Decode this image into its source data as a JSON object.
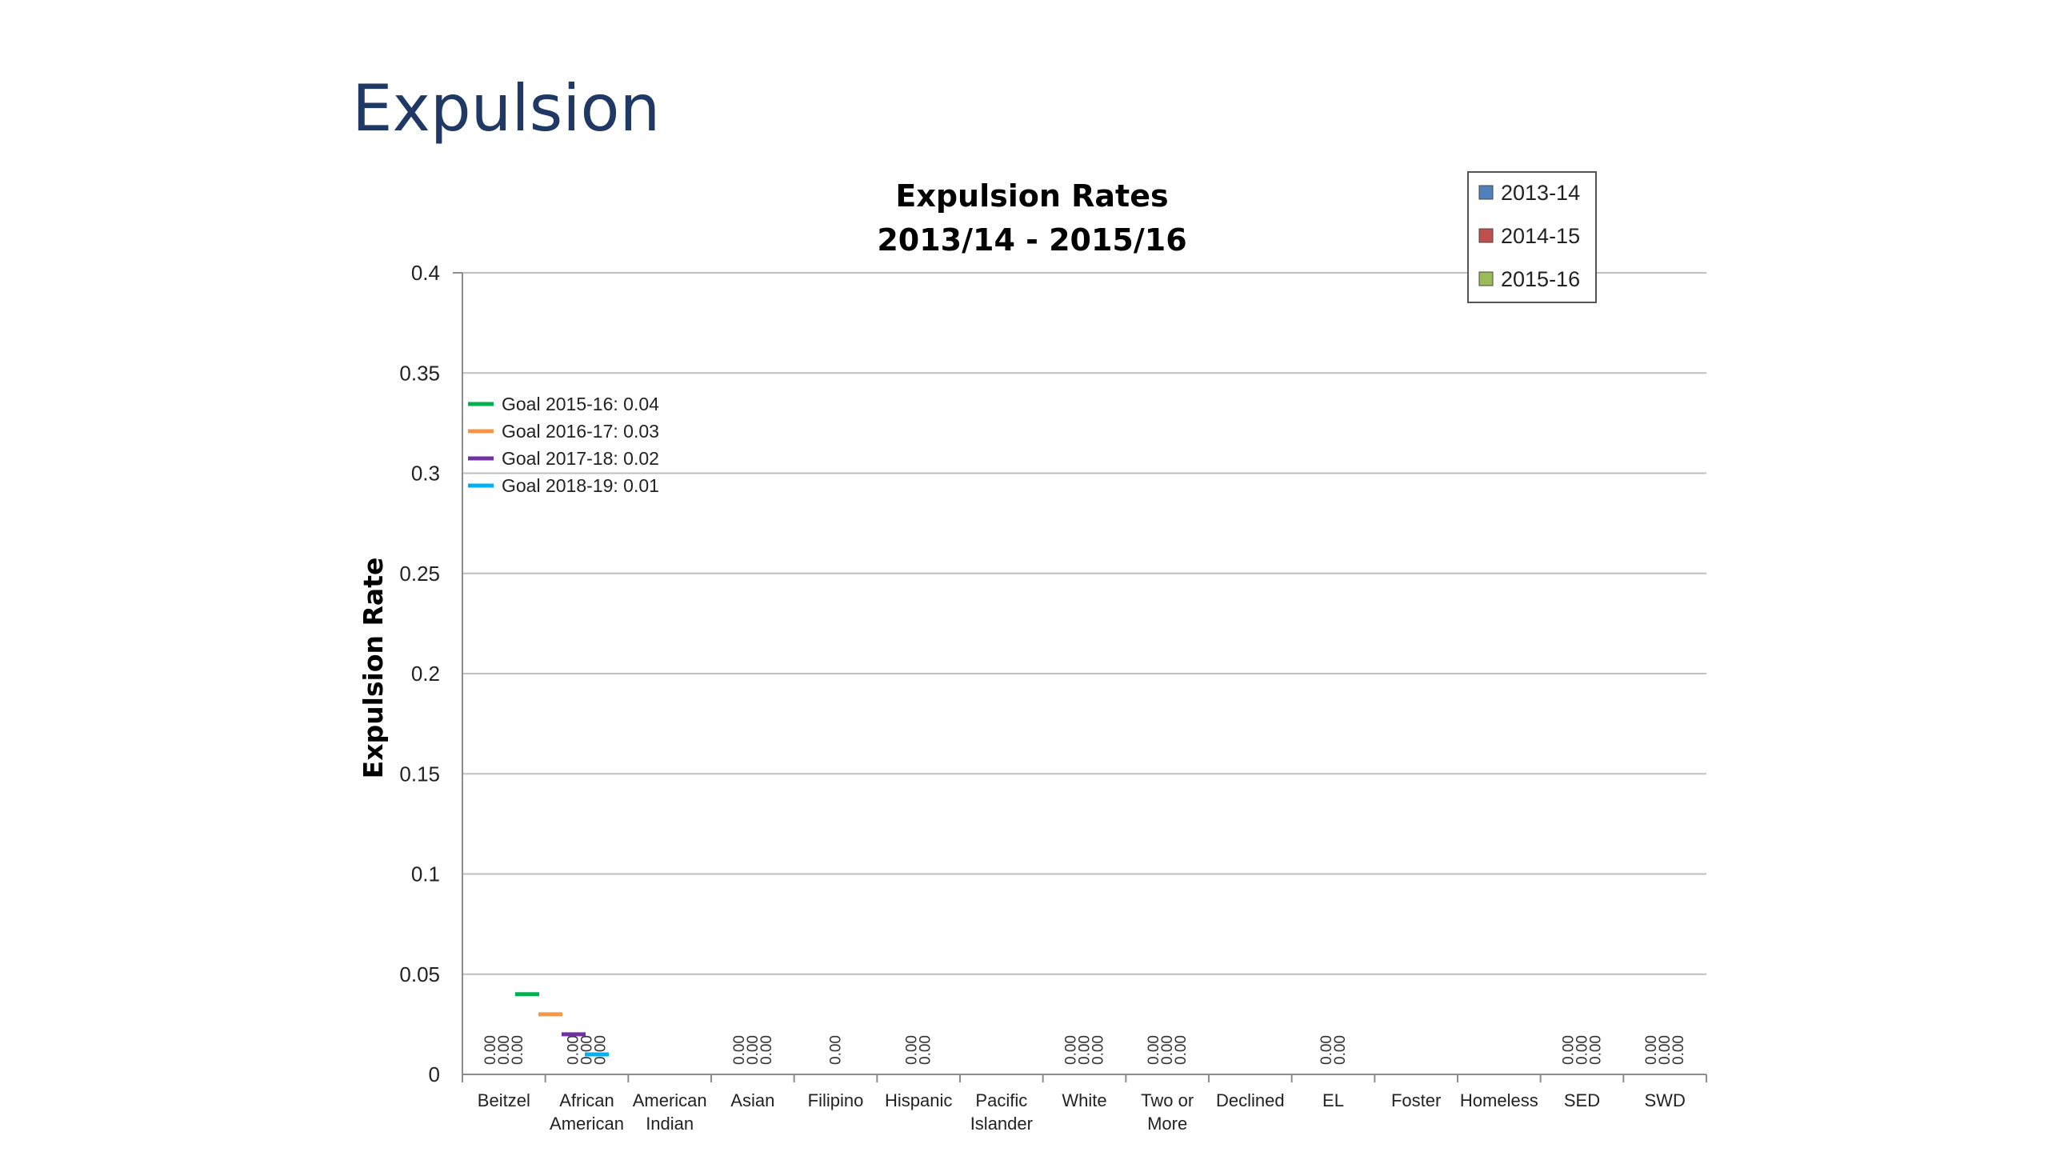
{
  "slide": {
    "title": "Expulsion"
  },
  "chart_data": {
    "type": "bar",
    "title": [
      "Expulsion Rates",
      "2013/14 - 2015/16"
    ],
    "xlabel": "",
    "ylabel": "Expulsion Rate",
    "ylim": [
      0,
      0.4
    ],
    "yticks": [
      "0",
      "0.05",
      "0.1",
      "0.15",
      "0.2",
      "0.25",
      "0.3",
      "0.35",
      "0.4"
    ],
    "grid": true,
    "legend_position": "top-right",
    "categories": [
      [
        "Beitzel"
      ],
      [
        "African",
        "American"
      ],
      [
        "American",
        "Indian"
      ],
      [
        "Asian"
      ],
      [
        "Filipino"
      ],
      [
        "Hispanic"
      ],
      [
        "Pacific",
        "Islander"
      ],
      [
        "White"
      ],
      [
        "Two or",
        "More"
      ],
      [
        "Declined"
      ],
      [
        "EL"
      ],
      [
        "Foster"
      ],
      [
        "Homeless"
      ],
      [
        "SED"
      ],
      [
        "SWD"
      ]
    ],
    "series": [
      {
        "name": "2013-14",
        "color": "#4f81bd",
        "values": [
          0,
          0,
          null,
          0,
          null,
          0,
          null,
          0,
          0,
          null,
          0,
          null,
          null,
          0,
          0
        ]
      },
      {
        "name": "2014-15",
        "color": "#c0504d",
        "values": [
          0,
          0,
          null,
          0,
          null,
          0,
          null,
          0,
          0,
          null,
          0,
          null,
          null,
          0,
          0
        ]
      },
      {
        "name": "2015-16",
        "color": "#9bbb59",
        "values": [
          0,
          0,
          null,
          0,
          0,
          null,
          null,
          0,
          0,
          null,
          null,
          null,
          null,
          0,
          0
        ]
      }
    ],
    "data_labels": [
      [
        "0.00",
        "0.00",
        "0.00"
      ],
      [
        "0.00",
        "0.00",
        "0.00"
      ],
      [],
      [
        "0.00",
        "0.00",
        "0.00"
      ],
      [
        "0.00"
      ],
      [
        "0.00",
        "0.00"
      ],
      [],
      [
        "0.00",
        "0.00",
        "0.00"
      ],
      [
        "0.00",
        "0.00",
        "0.00"
      ],
      [],
      [
        "0.00",
        "0.00"
      ],
      [],
      [],
      [
        "0.00",
        "0.00",
        "0.00"
      ],
      [
        "0.00",
        "0.00",
        "0.00"
      ]
    ],
    "goals": [
      {
        "label": "Goal 2015-16: 0.04",
        "value": 0.04,
        "color": "#00b050"
      },
      {
        "label": "Goal 2016-17: 0.03",
        "value": 0.03,
        "color": "#f79646"
      },
      {
        "label": "Goal 2017-18: 0.02",
        "value": 0.02,
        "color": "#7030a0"
      },
      {
        "label": "Goal 2018-19: 0.01",
        "value": 0.01,
        "color": "#00b0f0"
      }
    ]
  }
}
